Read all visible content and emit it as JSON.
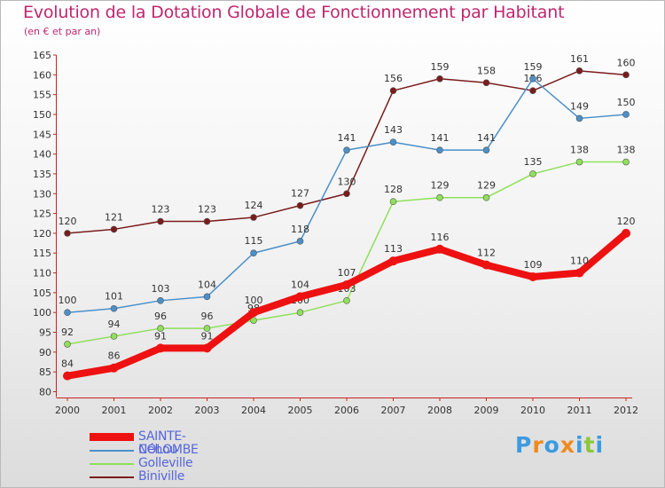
{
  "chart_data": {
    "type": "line",
    "title": "Evolution de la Dotation Globale de Fonctionnement par Habitant",
    "subtitle": "(en € et par an)",
    "x": [
      "2000",
      "2001",
      "2002",
      "2003",
      "2004",
      "2005",
      "2006",
      "2007",
      "2008",
      "2009",
      "2010",
      "2011",
      "2012"
    ],
    "ylim": [
      80,
      165
    ],
    "yticks": [
      80,
      85,
      90,
      95,
      100,
      105,
      110,
      115,
      120,
      125,
      130,
      135,
      140,
      145,
      150,
      155,
      160,
      165
    ],
    "grid": false,
    "legend_position": "bottom-left",
    "series": [
      {
        "name": "Biniville",
        "color": "#7a1c1c",
        "values": [
          120,
          121,
          123,
          123,
          124,
          127,
          130,
          156,
          159,
          158,
          156,
          161,
          160
        ]
      },
      {
        "name": "Golleville",
        "color": "#8fe05a",
        "values": [
          92,
          94,
          96,
          96,
          98,
          100,
          103,
          128,
          129,
          129,
          135,
          138,
          138
        ]
      },
      {
        "name": "Néhou",
        "color": "#4a90c9",
        "values": [
          100,
          101,
          103,
          104,
          115,
          118,
          141,
          143,
          141,
          141,
          159,
          149,
          150
        ]
      },
      {
        "name": "SAINTE-COLOMBE",
        "color": "#ee1111",
        "values": [
          84,
          86,
          91,
          91,
          100,
          104,
          107,
          113,
          116,
          112,
          109,
          110,
          120
        ]
      }
    ]
  },
  "legend": {
    "items": [
      {
        "name": "SAINTE-COLOMBE",
        "color": "#ee1111"
      },
      {
        "name": "Néhou",
        "color": "#4a90c9"
      },
      {
        "name": "Golleville",
        "color": "#8fe05a"
      },
      {
        "name": "Biniville",
        "color": "#7a1c1c"
      }
    ]
  },
  "logo": {
    "letters": [
      "P",
      "r",
      "o",
      "x",
      "i",
      "t",
      "i"
    ],
    "colors": [
      "#3b9be0",
      "#f08a1c",
      "#3b9be0",
      "#f08a1c",
      "#3b9be0",
      "#8bc83c",
      "#3b9be0"
    ]
  }
}
